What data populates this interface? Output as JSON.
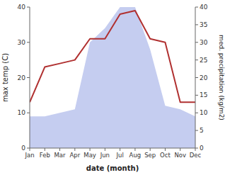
{
  "chart_data": {
    "type": "line",
    "categories": [
      "Jan",
      "Feb",
      "Mar",
      "Apr",
      "May",
      "Jun",
      "Jul",
      "Aug",
      "Sep",
      "Oct",
      "Nov",
      "Dec"
    ],
    "series": [
      {
        "type": "area",
        "axis": "y2",
        "color": "#c5cdf0",
        "values": [
          9,
          9,
          10,
          11,
          30,
          34,
          40,
          40,
          28,
          12,
          11,
          9
        ]
      },
      {
        "type": "line",
        "color": "#b03030",
        "values": [
          13,
          23,
          24,
          25,
          31,
          31,
          38,
          39,
          31,
          30,
          13,
          13
        ]
      }
    ],
    "xlabel": "date (month)",
    "ylabel": "max temp (C)",
    "y2label": "med. precipitation (kg/m2)",
    "ylim": [
      0,
      40
    ],
    "yticks": [
      0,
      10,
      20,
      30,
      40
    ],
    "y2lim": [
      0,
      40
    ],
    "y2ticks": [
      0,
      5,
      10,
      15,
      20,
      25,
      30,
      35,
      40
    ],
    "grid": false
  }
}
